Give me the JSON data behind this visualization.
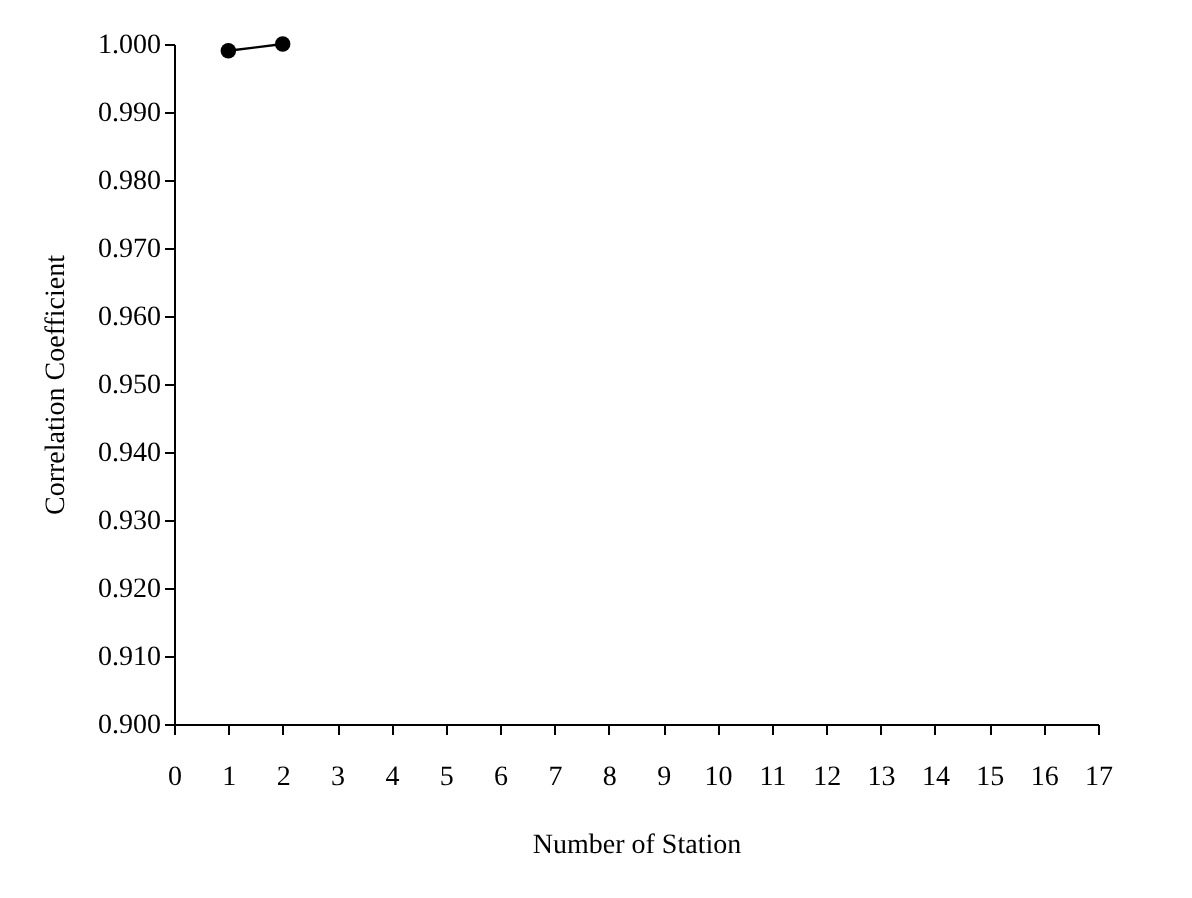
{
  "chart_data": {
    "type": "line",
    "xlabel": "Number of Station",
    "ylabel": "Correlation Coefficient",
    "x": [
      1,
      2
    ],
    "series": [
      {
        "color": "#000000",
        "values": [
          0.999,
          1.0
        ]
      }
    ],
    "xlim": [
      0,
      17
    ],
    "xticks": [
      0,
      1,
      2,
      3,
      4,
      5,
      6,
      7,
      8,
      9,
      10,
      11,
      12,
      13,
      14,
      15,
      16,
      17
    ],
    "ylim": [
      0.9,
      1.0
    ],
    "yticks": [
      {
        "value": 0.9,
        "label": "0.900"
      },
      {
        "value": 0.91,
        "label": "0.910"
      },
      {
        "value": 0.92,
        "label": "0.920"
      },
      {
        "value": 0.93,
        "label": "0.930"
      },
      {
        "value": 0.94,
        "label": "0.940"
      },
      {
        "value": 0.95,
        "label": "0.950"
      },
      {
        "value": 0.96,
        "label": "0.960"
      },
      {
        "value": 0.97,
        "label": "0.970"
      },
      {
        "value": 0.98,
        "label": "0.980"
      },
      {
        "value": 0.99,
        "label": "0.990"
      },
      {
        "value": 1.0,
        "label": "1.000"
      }
    ],
    "grid": false,
    "marker": "circle",
    "line_style": "solid"
  }
}
